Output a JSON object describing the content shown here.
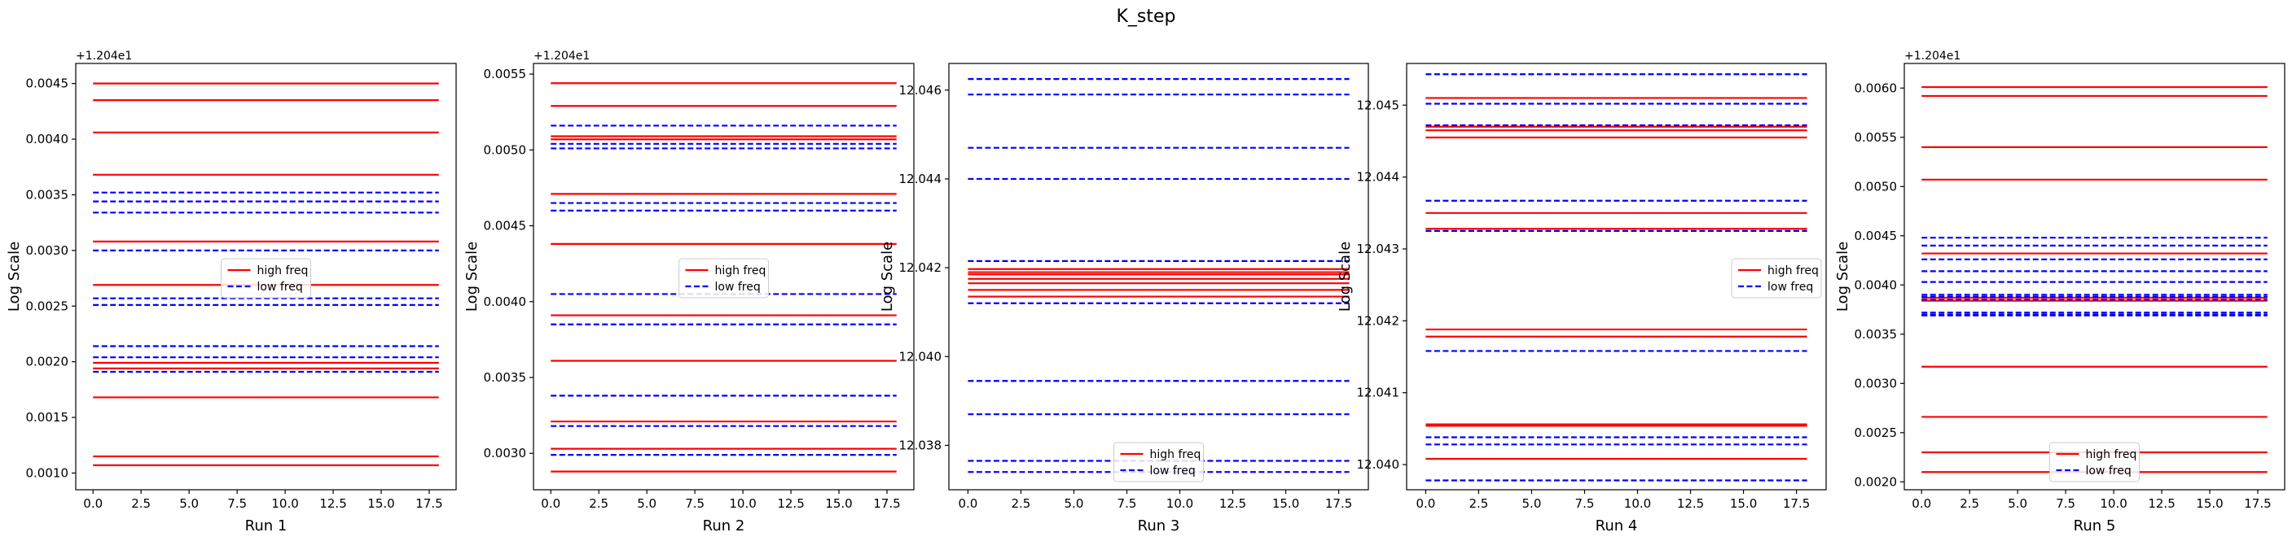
{
  "figure": {
    "title": "K_step"
  },
  "colors": {
    "high": "#ff0000",
    "low": "#0000ff",
    "legend_border": "#cccccc"
  },
  "legend": {
    "high_label": "high freq",
    "low_label": "low freq"
  },
  "chart_data": [
    {
      "type": "line",
      "xlabel": "Run 1",
      "ylabel": "Log Scale",
      "offset_label": "+1.204e1",
      "xlim": [
        -0.9,
        18.9
      ],
      "ylim": [
        0.00085,
        0.00468
      ],
      "xticks": [
        0,
        2.5,
        5,
        7.5,
        10,
        12.5,
        15,
        17.5
      ],
      "xtick_labels": [
        "0.0",
        "2.5",
        "5.0",
        "7.5",
        "10.0",
        "12.5",
        "15.0",
        "17.5"
      ],
      "yticks": [
        0.001,
        0.0015,
        0.002,
        0.0025,
        0.003,
        0.0035,
        0.004,
        0.0045
      ],
      "ytick_labels": [
        "0.0010",
        "0.0015",
        "0.0020",
        "0.0025",
        "0.0030",
        "0.0035",
        "0.0040",
        "0.0045"
      ],
      "legend_position": "center",
      "x_range": [
        0,
        18
      ],
      "high_levels": [
        0.0045,
        0.00435,
        0.00406,
        0.00368,
        0.00308,
        0.00269,
        0.00199,
        0.00194,
        0.00168,
        0.00115,
        0.00107
      ],
      "low_levels": [
        0.00352,
        0.00344,
        0.00334,
        0.003,
        0.00257,
        0.00251,
        0.00214,
        0.00204,
        0.00191
      ]
    },
    {
      "type": "line",
      "xlabel": "Run 2",
      "ylabel": "Log Scale",
      "offset_label": "+1.204e1",
      "xlim": [
        -0.9,
        18.9
      ],
      "ylim": [
        0.00276,
        0.00557
      ],
      "xticks": [
        0,
        2.5,
        5,
        7.5,
        10,
        12.5,
        15,
        17.5
      ],
      "xtick_labels": [
        "0.0",
        "2.5",
        "5.0",
        "7.5",
        "10.0",
        "12.5",
        "15.0",
        "17.5"
      ],
      "yticks": [
        0.003,
        0.0035,
        0.004,
        0.0045,
        0.005,
        0.0055
      ],
      "ytick_labels": [
        "0.0030",
        "0.0035",
        "0.0040",
        "0.0045",
        "0.0050",
        "0.0055"
      ],
      "legend_position": "center",
      "x_range": [
        0,
        18
      ],
      "high_levels": [
        0.00544,
        0.00529,
        0.00509,
        0.00507,
        0.00471,
        0.00438,
        0.00391,
        0.00361,
        0.00321,
        0.00303,
        0.00288
      ],
      "low_levels": [
        0.00516,
        0.00504,
        0.00501,
        0.00465,
        0.0046,
        0.00405,
        0.00385,
        0.00338,
        0.00318,
        0.00299
      ]
    },
    {
      "type": "line",
      "xlabel": "Run 3",
      "ylabel": "Log Scale",
      "offset_label": "",
      "xlim": [
        -0.9,
        18.9
      ],
      "ylim": [
        12.037,
        12.0466
      ],
      "xticks": [
        0,
        2.5,
        5,
        7.5,
        10,
        12.5,
        15,
        17.5
      ],
      "xtick_labels": [
        "0.0",
        "2.5",
        "5.0",
        "7.5",
        "10.0",
        "12.5",
        "15.0",
        "17.5"
      ],
      "yticks": [
        12.038,
        12.04,
        12.042,
        12.044,
        12.046
      ],
      "ytick_labels": [
        "12.038",
        "12.040",
        "12.042",
        "12.044",
        "12.046"
      ],
      "legend_position": "lower center",
      "x_range": [
        0,
        18
      ],
      "high_levels": [
        12.04197,
        12.0419,
        12.04185,
        12.04175,
        12.04165,
        12.0415,
        12.04135
      ],
      "low_levels": [
        12.04625,
        12.0459,
        12.0447,
        12.044,
        12.04215,
        12.0412,
        12.03945,
        12.0387,
        12.03765,
        12.0374
      ]
    },
    {
      "type": "line",
      "xlabel": "Run 4",
      "ylabel": "Log Scale",
      "offset_label": "",
      "xlim": [
        -0.9,
        18.9
      ],
      "ylim": [
        12.03965,
        12.04558
      ],
      "xticks": [
        0,
        2.5,
        5,
        7.5,
        10,
        12.5,
        15,
        17.5
      ],
      "xtick_labels": [
        "0.0",
        "2.5",
        "5.0",
        "7.5",
        "10.0",
        "12.5",
        "15.0",
        "17.5"
      ],
      "yticks": [
        12.04,
        12.041,
        12.042,
        12.043,
        12.044,
        12.045
      ],
      "ytick_labels": [
        "12.040",
        "12.041",
        "12.042",
        "12.043",
        "12.044",
        "12.045"
      ],
      "legend_position": "center right",
      "x_range": [
        0,
        18
      ],
      "high_levels": [
        12.0451,
        12.0447,
        12.04465,
        12.04455,
        12.0435,
        12.04328,
        12.04188,
        12.04178,
        12.04056,
        12.04054,
        12.04008
      ],
      "low_levels": [
        12.04543,
        12.04502,
        12.04472,
        12.04367,
        12.04325,
        12.04158,
        12.04038,
        12.04028,
        12.03978
      ]
    },
    {
      "type": "line",
      "xlabel": "Run 5",
      "ylabel": "Log Scale",
      "offset_label": "+1.204e1",
      "xlim": [
        -0.9,
        18.9
      ],
      "ylim": [
        0.00192,
        0.00625
      ],
      "xticks": [
        0,
        2.5,
        5,
        7.5,
        10,
        12.5,
        15,
        17.5
      ],
      "xtick_labels": [
        "0.0",
        "2.5",
        "5.0",
        "7.5",
        "10.0",
        "12.5",
        "15.0",
        "17.5"
      ],
      "yticks": [
        0.002,
        0.0025,
        0.003,
        0.0035,
        0.004,
        0.0045,
        0.005,
        0.0055,
        0.006
      ],
      "ytick_labels": [
        "0.0020",
        "0.0025",
        "0.0030",
        "0.0035",
        "0.0040",
        "0.0045",
        "0.0050",
        "0.0055",
        "0.0060"
      ],
      "legend_position": "lower center",
      "x_range": [
        0,
        18
      ],
      "high_levels": [
        0.00601,
        0.00592,
        0.0054,
        0.00507,
        0.00432,
        0.00387,
        0.00384,
        0.00317,
        0.00266,
        0.0023,
        0.0021
      ],
      "low_levels": [
        0.00448,
        0.0044,
        0.00426,
        0.00414,
        0.00403,
        0.0039,
        0.00388,
        0.00385,
        0.00372,
        0.0037,
        0.00369
      ]
    }
  ]
}
